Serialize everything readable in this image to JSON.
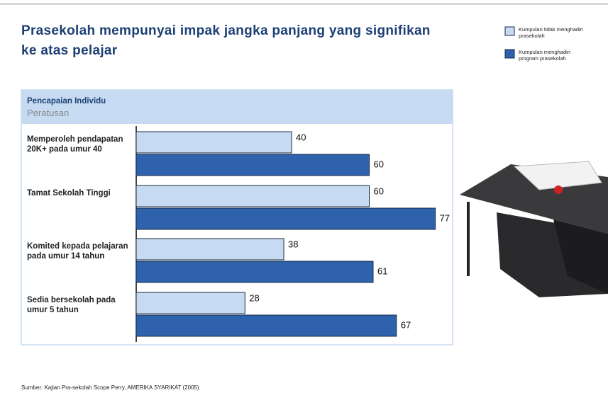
{
  "chart_data": {
    "type": "hbar",
    "title": "Prasekolah mempunyai impak jangka panjang yang signifikan ke atas  pelajar",
    "header": "Pencapaian Individu",
    "subheader": "Peratusan",
    "categories": [
      "Memperoleh pendapatan 20K+ pada umur 40",
      "Tamat Sekolah Tinggi",
      "Komited kepada pelajaran pada umur 14 tahun",
      "Sedia bersekolah pada umur 5 tahun"
    ],
    "series": [
      {
        "name": "Kumpulan tidak menghadiri prasekolah",
        "color": "#c6dbf1",
        "values": [
          40,
          60,
          38,
          28
        ]
      },
      {
        "name": "Kumpulan menghadiri program prasekolah",
        "color": "#2e62ad",
        "values": [
          60,
          77,
          61,
          67
        ]
      }
    ],
    "xlim": [
      0,
      100
    ],
    "legend": "top-right",
    "source": "Sumber: Kajian Pra-sekolah Scope Perry, AMERIKA SYARIKAT (2005)"
  }
}
